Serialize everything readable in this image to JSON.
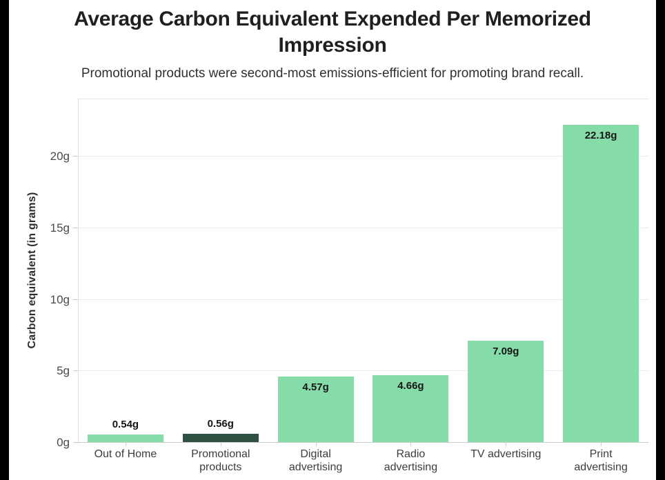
{
  "page": {
    "background_color": "#ffffff",
    "edge_bar_color": "#000000"
  },
  "header": {
    "title": "Average Carbon Equivalent Expended Per Memorized\nImpression",
    "subtitle": "Promotional products were second-most emissions-efficient for promoting brand recall."
  },
  "chart_data": {
    "type": "bar",
    "title": "Average Carbon Equivalent Expended Per Memorized Impression",
    "subtitle": "Promotional products were second-most emissions-efficient for promoting brand recall.",
    "categories": [
      "Out of Home",
      "Promotional products",
      "Digital advertising",
      "Radio advertising",
      "TV advertising",
      "Print advertising"
    ],
    "category_display": [
      "Out of Home",
      "Promotional\nproducts",
      "Digital\nadvertising",
      "Radio\nadvertising",
      "TV advertising",
      "Print\nadvertising"
    ],
    "values": [
      0.54,
      0.56,
      4.57,
      4.66,
      7.09,
      22.18
    ],
    "value_labels": [
      "0.54g",
      "0.56g",
      "4.57g",
      "4.66g",
      "7.09g",
      "22.18g"
    ],
    "bar_colors": [
      "#86dca9",
      "#2e5041",
      "#86dca9",
      "#86dca9",
      "#86dca9",
      "#86dca9"
    ],
    "xlabel": "",
    "ylabel": "Carbon equivalent (in grams)",
    "ylim": [
      0,
      24
    ],
    "yticks": [
      0,
      5,
      10,
      15,
      20
    ],
    "ytick_labels": [
      "0g",
      "5g",
      "10g",
      "15g",
      "20g"
    ],
    "grid": true,
    "legend": false
  }
}
